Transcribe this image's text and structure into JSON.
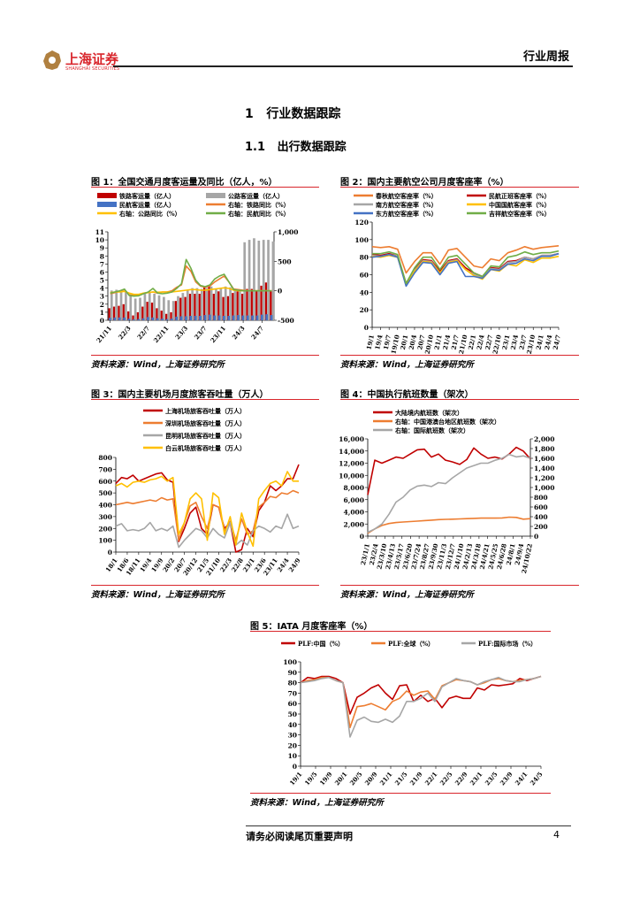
{
  "header": {
    "logo_cn": "上海证券",
    "logo_en": "SHANGHAI SECURITIES",
    "report_type": "行业周报"
  },
  "headings": {
    "h1_num": "1",
    "h1_text": "行业数据跟踪",
    "h2_num": "1.1",
    "h2_text": "出行数据跟踪"
  },
  "source_text": "资料来源：Wind，上海证券研究所",
  "footer": {
    "disclaimer": "请务必阅读尾页重要声明",
    "page": "4"
  },
  "colors": {
    "accent": "#d9262c",
    "rail": "#c00000",
    "highway": "#a6a6a6",
    "air": "#4472c4",
    "orange": "#ed7d31",
    "yellow": "#ffc000",
    "green": "#70ad47",
    "gray": "#a6a6a6"
  },
  "chart_data": [
    {
      "id": "fig1",
      "type": "bar",
      "title": "图 1：全国交通月度客运量及同比（亿人，%）",
      "categories": [
        "21/11",
        "21/12",
        "22/1",
        "22/2",
        "22/3",
        "22/4",
        "22/5",
        "22/6",
        "22/7",
        "22/8",
        "22/9",
        "22/10",
        "22/11",
        "22/12",
        "23/1",
        "23/2",
        "23/3",
        "23/4",
        "23/5",
        "23/6",
        "23/7",
        "23/8",
        "23/9",
        "23/10",
        "23/11",
        "23/12",
        "24/1",
        "24/2",
        "24/3",
        "24/4",
        "24/5",
        "24/6",
        "24/7",
        "24/8",
        "24/9"
      ],
      "xtick_labels": [
        "21/11",
        "22/3",
        "22/7",
        "22/11",
        "23/3",
        "23/7",
        "23/11",
        "24/3",
        "24/7"
      ],
      "ylim": [
        0,
        11
      ],
      "yticks": [
        0,
        1,
        2,
        3,
        4,
        5,
        6,
        7,
        8,
        9,
        10,
        11
      ],
      "y2lim": [
        -500,
        1000
      ],
      "y2ticks": [
        "-500",
        "0",
        "500",
        "1,000"
      ],
      "series": [
        {
          "name": "公路客运量（亿人）",
          "kind": "bar",
          "axis": "left",
          "color": "#a6a6a6",
          "values": [
            3.7,
            3.8,
            3.6,
            3.6,
            3.2,
            2.7,
            2.8,
            3.3,
            3.5,
            3.3,
            3.1,
            2.9,
            2.5,
            2.4,
            3.0,
            3.4,
            3.7,
            4.0,
            4.0,
            3.9,
            4.0,
            4.2,
            3.9,
            4.0,
            4.2,
            4.1,
            3.9,
            3.8,
            9.7,
            10.0,
            10.2,
            9.9,
            10.0,
            10.0,
            9.8
          ]
        },
        {
          "name": "铁路客运量（亿人）",
          "kind": "bar",
          "axis": "left",
          "color": "#c00000",
          "values": [
            1.5,
            1.7,
            1.8,
            2.0,
            1.1,
            0.6,
            1.0,
            1.7,
            2.3,
            2.2,
            1.5,
            1.2,
            0.8,
            1.0,
            2.4,
            2.8,
            2.9,
            3.3,
            3.3,
            3.3,
            4.2,
            4.3,
            3.3,
            3.6,
            2.9,
            3.0,
            3.4,
            3.6,
            3.3,
            3.9,
            3.9,
            3.7,
            4.3,
            4.7,
            3.6
          ]
        },
        {
          "name": "民航客运量（亿人）",
          "kind": "bar",
          "axis": "left",
          "color": "#4472c4",
          "values": [
            0.3,
            0.35,
            0.35,
            0.35,
            0.2,
            0.1,
            0.15,
            0.25,
            0.4,
            0.35,
            0.25,
            0.2,
            0.15,
            0.2,
            0.45,
            0.5,
            0.5,
            0.55,
            0.55,
            0.55,
            0.65,
            0.7,
            0.6,
            0.6,
            0.55,
            0.55,
            0.6,
            0.65,
            0.6,
            0.6,
            0.6,
            0.6,
            0.7,
            0.75,
            0.65
          ]
        },
        {
          "name": "右轴：铁路同比（%）",
          "kind": "line",
          "axis": "right",
          "color": "#ed7d31",
          "values": [
            -50,
            -30,
            -10,
            20,
            -70,
            -80,
            -75,
            -40,
            -30,
            -20,
            -40,
            -20,
            -20,
            0,
            60,
            100,
            420,
            330,
            150,
            80,
            60,
            80,
            150,
            200,
            250,
            150,
            30,
            20,
            10,
            0,
            0,
            0,
            0,
            0,
            0
          ]
        },
        {
          "name": "右轴：公路同比（%）",
          "kind": "line",
          "axis": "right",
          "color": "#ffc000",
          "values": [
            -30,
            -20,
            -20,
            -10,
            -40,
            -60,
            -60,
            -40,
            -30,
            -20,
            -25,
            -20,
            -20,
            -20,
            -10,
            0,
            10,
            20,
            20,
            10,
            10,
            20,
            30,
            40,
            50,
            40,
            10,
            0,
            0,
            0,
            0,
            0,
            0,
            0,
            0
          ]
        },
        {
          "name": "右轴：民航同比（%）",
          "kind": "line",
          "axis": "right",
          "color": "#70ad47",
          "values": [
            -40,
            -20,
            0,
            30,
            -80,
            -90,
            -85,
            -50,
            -20,
            40,
            -40,
            -50,
            -40,
            -20,
            40,
            120,
            530,
            380,
            180,
            90,
            70,
            100,
            200,
            250,
            280,
            150,
            20,
            10,
            0,
            0,
            0,
            0,
            0,
            0,
            0
          ]
        }
      ],
      "legend_order": [
        "铁路客运量（亿人）",
        "公路客运量（亿人）",
        "民航客运量（亿人）",
        "右轴：铁路同比（%）",
        "右轴：公路同比（%）",
        "右轴：民航同比（%）"
      ],
      "legend": "top"
    },
    {
      "id": "fig2",
      "type": "line",
      "title": "图 2：国内主要航空公司月度客座率（%）",
      "categories": [
        "19/1",
        "19/4",
        "19/7",
        "19/10",
        "20/1",
        "20/4",
        "20/7",
        "20/10",
        "21/1",
        "21/4",
        "21/7",
        "21/10",
        "22/1",
        "22/4",
        "22/7",
        "22/10",
        "23/1",
        "23/4",
        "23/7",
        "23/10",
        "24/1",
        "24/4",
        "24/7"
      ],
      "ylim": [
        0,
        120
      ],
      "yticks": [
        0,
        20,
        40,
        60,
        80,
        100,
        120
      ],
      "series": [
        {
          "name": "春秋航空客座率（%）",
          "color": "#ed7d31",
          "values": [
            92,
            91,
            92,
            89,
            62,
            75,
            85,
            85,
            72,
            88,
            90,
            80,
            70,
            68,
            78,
            76,
            85,
            88,
            92,
            89,
            91,
            92,
            93
          ]
        },
        {
          "name": "民航正班客座率（%）",
          "color": "#c00000",
          "values": [
            83,
            82,
            84,
            81,
            50,
            66,
            77,
            76,
            64,
            76,
            78,
            68,
            62,
            58,
            68,
            67,
            75,
            76,
            80,
            78,
            82,
            82,
            84
          ]
        },
        {
          "name": "南方航空客座率（%）",
          "color": "#a6a6a6",
          "values": [
            82,
            81,
            83,
            81,
            48,
            65,
            76,
            75,
            62,
            75,
            77,
            66,
            60,
            57,
            67,
            66,
            74,
            75,
            80,
            78,
            82,
            82,
            84
          ]
        },
        {
          "name": "中国国航客座率（%）",
          "color": "#ffc000",
          "values": [
            81,
            80,
            82,
            80,
            49,
            64,
            75,
            74,
            62,
            74,
            76,
            66,
            59,
            55,
            66,
            64,
            72,
            70,
            77,
            74,
            79,
            79,
            81
          ]
        },
        {
          "name": "东方航空客座率（%）",
          "color": "#4472c4",
          "values": [
            80,
            81,
            83,
            80,
            47,
            62,
            74,
            73,
            60,
            73,
            75,
            58,
            58,
            56,
            66,
            65,
            72,
            73,
            78,
            76,
            81,
            81,
            84
          ]
        },
        {
          "name": "吉祥航空客座率（%）",
          "color": "#70ad47",
          "values": [
            84,
            84,
            86,
            83,
            50,
            68,
            80,
            80,
            66,
            80,
            82,
            72,
            62,
            58,
            70,
            69,
            80,
            82,
            86,
            83,
            85,
            85,
            87
          ]
        }
      ],
      "legend": "top"
    },
    {
      "id": "fig3",
      "type": "line",
      "title": "图 3：国内主要机场月度旅客吞吐量（万人）",
      "xtick_labels": [
        "18/1",
        "18/6",
        "18/11",
        "19/4",
        "19/9",
        "20/2",
        "20/7",
        "20/12",
        "21/5",
        "21/10",
        "22/3",
        "22/8",
        "23/1",
        "23/6",
        "23/11",
        "24/4",
        "24/9"
      ],
      "ylim": [
        0,
        800
      ],
      "yticks": [
        0,
        100,
        200,
        300,
        400,
        500,
        600,
        700,
        800
      ],
      "series": [
        {
          "name": "上海机场旅客吞吐量（万人）",
          "color": "#c00000",
          "values": [
            580,
            630,
            620,
            650,
            600,
            620,
            640,
            660,
            670,
            610,
            590,
            90,
            200,
            330,
            380,
            200,
            150,
            400,
            380,
            200,
            250,
            0,
            20,
            200,
            130,
            350,
            420,
            560,
            520,
            560,
            620,
            620,
            740
          ]
        },
        {
          "name": "深圳机场旅客吞吐量（万人）",
          "color": "#ed7d31",
          "values": [
            400,
            410,
            420,
            410,
            420,
            430,
            440,
            430,
            460,
            440,
            450,
            100,
            250,
            390,
            420,
            300,
            200,
            400,
            380,
            180,
            260,
            100,
            280,
            150,
            180,
            380,
            420,
            470,
            460,
            500,
            490,
            520,
            500
          ]
        },
        {
          "name": "昆明机场旅客吞吐量（万人）",
          "color": "#a6a6a6",
          "values": [
            220,
            240,
            180,
            190,
            180,
            200,
            250,
            180,
            200,
            180,
            220,
            40,
            100,
            150,
            200,
            180,
            120,
            200,
            150,
            120,
            250,
            60,
            100,
            60,
            180,
            220,
            200,
            170,
            220,
            200,
            320,
            200,
            220
          ]
        },
        {
          "name": "白云机场旅客吞吐量（万人）",
          "color": "#ffc000",
          "values": [
            560,
            580,
            550,
            590,
            600,
            590,
            610,
            620,
            640,
            600,
            630,
            150,
            250,
            450,
            500,
            450,
            100,
            500,
            460,
            150,
            300,
            60,
            330,
            170,
            50,
            450,
            520,
            580,
            600,
            560,
            680,
            600,
            600
          ]
        }
      ],
      "legend": "top"
    },
    {
      "id": "fig4",
      "type": "line",
      "title": "图 4：中国执行航班数量（架次）",
      "xtick_labels": [
        "23/1/1",
        "23/2/4",
        "23/3/10",
        "23/4/13",
        "23/5/17",
        "23/6/20",
        "23/7/24",
        "23/8/27",
        "23/9/30",
        "23/11/3",
        "23/12/7",
        "24/1/10",
        "24/2/13",
        "24/3/18",
        "24/4/21",
        "24/5/25",
        "24/6/28",
        "24/8/1",
        "24/9/4",
        "24/10/22"
      ],
      "ylim": [
        0,
        16000
      ],
      "yticks": [
        "0",
        "2,000",
        "4,000",
        "6,000",
        "8,000",
        "10,000",
        "12,000",
        "14,000",
        "16,000"
      ],
      "y2lim": [
        0,
        2000
      ],
      "y2ticks": [
        "0",
        "200",
        "400",
        "600",
        "800",
        "1,000",
        "1,200",
        "1,400",
        "1,600",
        "1,800",
        "2,000"
      ],
      "series": [
        {
          "name": "大陆境内航班数（架次）",
          "axis": "left",
          "color": "#c00000",
          "values": [
            6800,
            12500,
            12000,
            12500,
            13000,
            12800,
            13500,
            14200,
            14300,
            13000,
            13500,
            12500,
            12200,
            11800,
            12600,
            14500,
            13500,
            12800,
            13000,
            12700,
            13500,
            14600,
            14000,
            12700
          ]
        },
        {
          "name": "右轴：中国港澳台地区航班数（架次）",
          "axis": "right",
          "color": "#ed7d31",
          "values": [
            60,
            150,
            220,
            260,
            280,
            290,
            300,
            310,
            320,
            330,
            340,
            345,
            350,
            355,
            360,
            365,
            370,
            370,
            370,
            375,
            390,
            385,
            350,
            360
          ]
        },
        {
          "name": "右轴：国际航班数（架次）",
          "axis": "right",
          "color": "#a6a6a6",
          "values": [
            80,
            150,
            250,
            450,
            700,
            800,
            950,
            1030,
            1050,
            1020,
            1100,
            1080,
            1200,
            1300,
            1400,
            1450,
            1500,
            1500,
            1560,
            1600,
            1680,
            1630,
            1650,
            1600
          ]
        }
      ],
      "legend": "top"
    },
    {
      "id": "fig5",
      "type": "line",
      "title": "图 5：IATA 月度客座率（%）",
      "xtick_labels": [
        "19/1",
        "19/5",
        "19/9",
        "20/1",
        "20/5",
        "20/9",
        "21/1",
        "21/5",
        "21/9",
        "22/1",
        "22/5",
        "22/9",
        "23/1",
        "23/5",
        "23/9",
        "24/1",
        "24/5"
      ],
      "ylim": [
        0,
        100
      ],
      "yticks": [
        0,
        10,
        20,
        30,
        40,
        50,
        60,
        70,
        80,
        90,
        100
      ],
      "series": [
        {
          "name": "PLF:中国（%）",
          "color": "#c00000",
          "values": [
            80,
            85,
            84,
            86,
            86,
            84,
            80,
            50,
            66,
            70,
            75,
            78,
            70,
            64,
            77,
            78,
            62,
            68,
            62,
            65,
            56,
            65,
            67,
            65,
            65,
            75,
            73,
            78,
            77,
            78,
            79,
            84,
            82,
            84,
            86
          ]
        },
        {
          "name": "PLF:全球（%）",
          "color": "#ed7d31",
          "values": [
            80,
            82,
            83,
            85,
            85,
            82,
            80,
            37,
            57,
            58,
            60,
            57,
            54,
            62,
            65,
            72,
            68,
            71,
            72,
            64,
            77,
            80,
            83,
            82,
            81,
            78,
            80,
            83,
            84,
            82,
            81,
            82,
            83,
            84,
            86
          ]
        },
        {
          "name": "PLF:国际市场（%）",
          "color": "#a6a6a6",
          "values": [
            80,
            81,
            82,
            84,
            85,
            82,
            80,
            28,
            44,
            47,
            43,
            42,
            45,
            42,
            48,
            62,
            62,
            65,
            70,
            62,
            76,
            80,
            84,
            82,
            81,
            78,
            81,
            83,
            85,
            82,
            81,
            81,
            83,
            84,
            86
          ]
        }
      ],
      "legend": "top"
    }
  ]
}
